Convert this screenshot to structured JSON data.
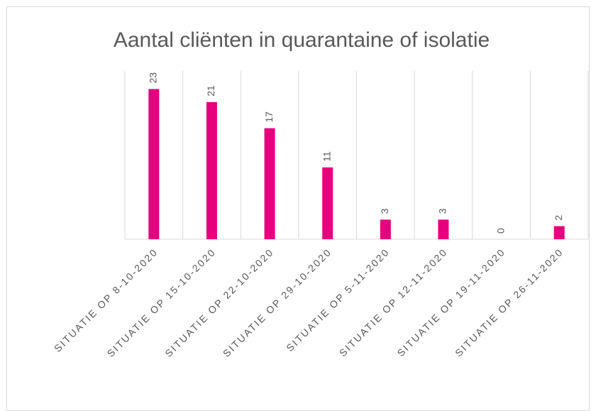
{
  "chart_data": {
    "type": "bar",
    "title": "Aantal cliënten in quarantaine of isolatie",
    "categories": [
      "SITUATIE OP 8-10-2020",
      "SITUATIE OP 15-10-2020",
      "SITUATIE OP 22-10-2020",
      "SITUATIE OP 29-10-2020",
      "SITUATIE OP 5-11-2020",
      "SITUATIE OP 12-11-2020",
      "SITUATIE OP 19-11-2020",
      "SITUATIE OP 26-11-2020"
    ],
    "values": [
      23,
      21,
      17,
      11,
      3,
      3,
      0,
      2
    ],
    "color": "#e6007e",
    "ylim": [
      0,
      25
    ]
  }
}
